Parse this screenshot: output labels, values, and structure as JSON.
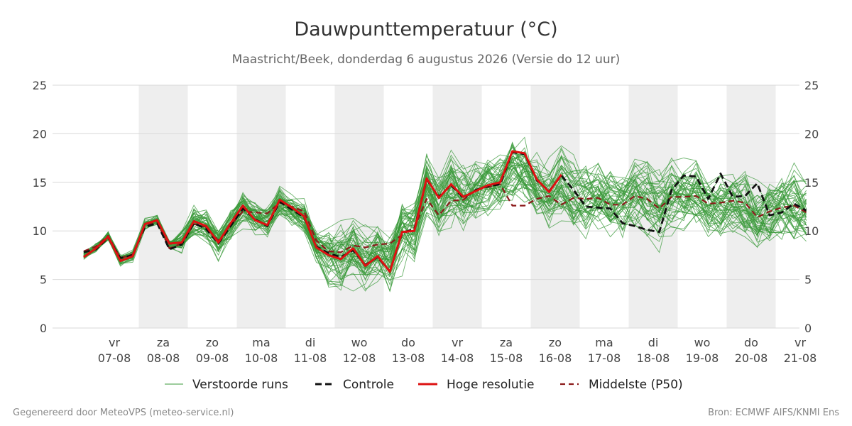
{
  "chart_data": {
    "type": "line",
    "title": "Dauwpunttemperatuur (°C)",
    "subtitle": "Maastricht/Beek, donderdag  6 augustus 2026 (Versie do 12 uur)",
    "x_start": "2026-08-06T21:00",
    "x_step_hours": 6,
    "ylim": [
      0,
      25
    ],
    "yticks": [
      0,
      5,
      10,
      15,
      20,
      25
    ],
    "grid": true,
    "legend_position": "bottom",
    "day_ticks": [
      {
        "day": "vr",
        "date": "07-08"
      },
      {
        "day": "za",
        "date": "08-08"
      },
      {
        "day": "zo",
        "date": "09-08"
      },
      {
        "day": "ma",
        "date": "10-08"
      },
      {
        "day": "di",
        "date": "11-08"
      },
      {
        "day": "wo",
        "date": "12-08"
      },
      {
        "day": "do",
        "date": "13-08"
      },
      {
        "day": "vr",
        "date": "14-08"
      },
      {
        "day": "za",
        "date": "15-08"
      },
      {
        "day": "zo",
        "date": "16-08"
      },
      {
        "day": "ma",
        "date": "17-08"
      },
      {
        "day": "di",
        "date": "18-08"
      },
      {
        "day": "wo",
        "date": "19-08"
      },
      {
        "day": "do",
        "date": "20-08"
      },
      {
        "day": "vr",
        "date": "21-08"
      }
    ],
    "weekend_days": [
      "2026-08-08",
      "2026-08-10",
      "2026-08-12",
      "2026-08-14",
      "2026-08-16",
      "2026-08-18",
      "2026-08-20",
      "2026-08-22"
    ],
    "ensemble_member_count": 50,
    "series": [
      {
        "name": "Hoge resolutie",
        "color": "#dd1111",
        "values": [
          7.3,
          8.2,
          9.4,
          6.9,
          7.4,
          10.7,
          11.1,
          8.7,
          8.8,
          11.0,
          10.5,
          8.8,
          10.8,
          12.6,
          11.1,
          10.6,
          13.2,
          12.4,
          11.5,
          8.3,
          7.5,
          7.1,
          8.2,
          6.4,
          7.4,
          5.8,
          9.9,
          10.0,
          15.4,
          13.4,
          14.8,
          13.5,
          14.1,
          14.7,
          15.0,
          18.2,
          18.0,
          15.3,
          14.0,
          15.8
        ]
      },
      {
        "name": "Controle",
        "color": "#111111",
        "values": [
          7.8,
          8.1,
          9.3,
          7.2,
          7.5,
          10.4,
          10.8,
          8.1,
          8.6,
          10.8,
          10.2,
          8.7,
          10.5,
          12.3,
          11.2,
          10.5,
          13.0,
          12.2,
          11.4,
          8.4,
          7.7,
          7.3,
          8.0,
          6.5,
          7.3,
          5.8,
          9.8,
          10.2,
          15.3,
          13.5,
          14.7,
          13.4,
          14.2,
          14.6,
          14.8,
          18.1,
          17.9,
          15.2,
          14.1,
          15.7,
          14.2,
          12.5,
          12.4,
          12.3,
          10.8,
          10.5,
          10.1,
          9.9,
          14.2,
          15.7,
          15.6,
          13.3,
          15.9,
          13.5,
          13.6,
          14.9,
          11.6,
          11.9,
          12.8,
          12.1
        ]
      },
      {
        "name": "Middelste (P50)",
        "color": "#8b1a1a",
        "values": [
          7.9,
          8.4,
          9.5,
          7.2,
          7.6,
          10.5,
          10.9,
          8.2,
          8.7,
          10.7,
          10.4,
          9.0,
          10.6,
          12.0,
          11.9,
          11.8,
          12.9,
          12.5,
          12.0,
          9.0,
          7.9,
          7.8,
          8.5,
          8.3,
          8.6,
          8.7,
          9.6,
          10.3,
          13.3,
          11.6,
          13.1,
          13.2,
          14.2,
          14.5,
          14.8,
          12.6,
          12.6,
          13.3,
          13.6,
          12.7,
          13.4,
          13.3,
          13.4,
          12.7,
          12.7,
          13.6,
          13.3,
          12.3,
          13.5,
          13.5,
          13.6,
          12.8,
          12.9,
          13.1,
          12.9,
          11.4,
          12.0,
          12.4,
          12.6,
          11.9
        ]
      },
      {
        "name": "Verstoorde runs",
        "color": "#3a9a3a",
        "values": []
      }
    ]
  },
  "footer": {
    "left": "Gegenereerd door MeteoVPS (meteo-service.nl)",
    "right": "Bron: ECMWF AIFS/KNMI Ens"
  }
}
